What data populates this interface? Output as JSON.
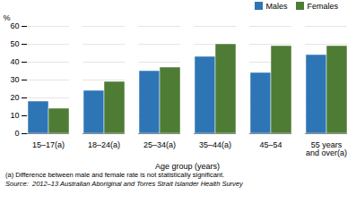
{
  "chart_data": {
    "type": "bar",
    "categories": [
      "15–17(a)",
      "18–24(a)",
      "25–34(a)",
      "35–44(a)",
      "45–54",
      "55 years\nand over(a)"
    ],
    "series": [
      {
        "name": "Males",
        "color": "#2E75B6",
        "values": [
          18,
          24,
          35,
          43,
          34,
          44
        ]
      },
      {
        "name": "Females",
        "color": "#4E7C34",
        "values": [
          14,
          29,
          37,
          50,
          49,
          49
        ]
      }
    ],
    "ylim": [
      0,
      60
    ],
    "yticks": [
      0,
      10,
      20,
      30,
      40,
      50,
      60
    ],
    "ylabel": "%",
    "xlabel": "Age group (years)",
    "annotations": [
      "(a) Difference between male and female rate is not statistically significant.",
      "Source:  2012–13 Australian Aboriginal and Torres Strait Islander Health Survey"
    ],
    "grid": true,
    "legend": "upper right"
  }
}
